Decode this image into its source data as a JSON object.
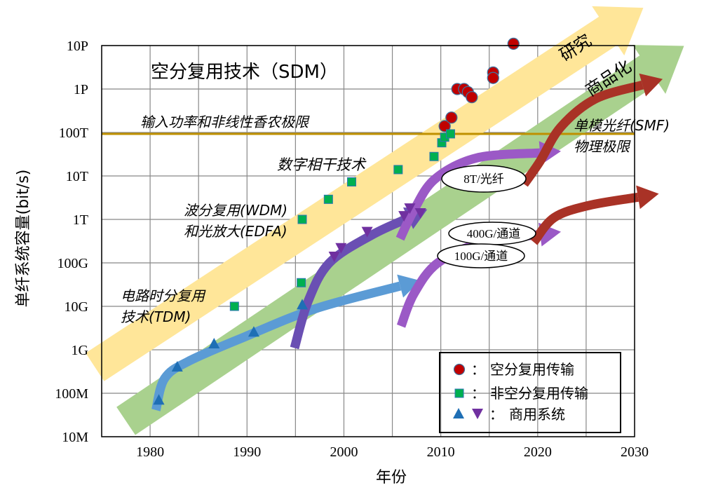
{
  "chart_data": {
    "type": "scatter",
    "title": "空分复用技术（SDM）",
    "xlabel": "年份",
    "ylabel": "单纤系统容量(bit/s)",
    "xlim": [
      1975,
      2030
    ],
    "ylim": [
      10000000.0,
      1e+16
    ],
    "yscale": "log",
    "grid": true,
    "x_ticks": [
      1980,
      1990,
      2000,
      2010,
      2020,
      2030
    ],
    "x_tick_labels": [
      "1980",
      "1990",
      "2000",
      "2010",
      "2020",
      "2030"
    ],
    "y_ticks": [
      10000000.0,
      100000000.0,
      1000000000.0,
      10000000000.0,
      100000000000.0,
      1000000000000.0,
      10000000000000.0,
      100000000000000.0,
      1000000000000000.0,
      1e+16
    ],
    "y_tick_labels": [
      "10M",
      "100M",
      "1G",
      "10G",
      "100G",
      "1T",
      "10T",
      "100T",
      "1P",
      "10P"
    ],
    "legend_position": "bottom-right",
    "legend": [
      {
        "marker": "circle",
        "label": "空分复用传输"
      },
      {
        "marker": "square",
        "label": "非空分复用传输"
      },
      {
        "marker": "triangles",
        "label": "商用系统"
      }
    ],
    "legend_separator": "：",
    "series": [
      {
        "name": "空分复用传输",
        "marker": "circle",
        "color": "#C00000",
        "x": [
          2010.4,
          2011.1,
          2011.7,
          2012.4,
          2012.8,
          2013.2,
          2015.4,
          2015.4,
          2017.5
        ],
        "y": [
          140000000000000.0,
          220000000000000.0,
          1000000000000000.0,
          1000000000000000.0,
          850000000000000.0,
          650000000000000.0,
          2400000000000000.0,
          1800000000000000.0,
          1.1e+16
        ]
      },
      {
        "name": "非空分复用传输",
        "marker": "square",
        "color": "#00B050",
        "x": [
          1988.7,
          1995.6,
          1995.7,
          1998.4,
          2000.8,
          2005.6,
          2009.3,
          2010.1,
          2010.4,
          2011.0
        ],
        "y": [
          10000000000.0,
          35000000000.0,
          1000000000000.0,
          2900000000000.0,
          7300000000000.0,
          14000000000000.0,
          28000000000000.0,
          58000000000000.0,
          78000000000000.0,
          93000000000000.0
        ]
      },
      {
        "name": "商用系统",
        "marker": "triangle-up",
        "color": "#1F6FB5",
        "x": [
          1980.9,
          1982.8,
          1986.6,
          1990.7,
          1995.7
        ],
        "y": [
          71000000.0,
          410000000.0,
          1400000000.0,
          2600000000.0,
          11000000000.0
        ]
      },
      {
        "name": "商用系统",
        "marker": "triangle-down",
        "color": "#7030A0",
        "x": [
          1999.0,
          1999.7,
          2002.4,
          2006.2,
          2006.8,
          2007.9
        ],
        "y": [
          140000000000.0,
          220000000000.0,
          520000000000.0,
          1200000000000.0,
          1800000000000.0,
          1400000000000.0
        ]
      }
    ],
    "reference_lines": [
      {
        "label": "输入功率和非线性香农极限",
        "y": 93000000000000.0,
        "color": "#BF9000"
      }
    ],
    "bands": [
      {
        "label": "研究",
        "color": "#FFE699",
        "from": [
          1974.3,
          400000000.0
        ],
        "to": [
          2030.9,
          7.4e+16
        ]
      },
      {
        "label": "商品化",
        "color": "#A9D18E",
        "from": [
          1977.5,
          23000000.0
        ],
        "to": [
          2035.1,
          9800000000000000.0
        ]
      }
    ],
    "trend_arrows": [
      {
        "label": "电路时分复用技术(TDM)",
        "color": "#5B9BD5",
        "points": [
          [
            1980.6,
            41000000.0
          ],
          [
            1981.5,
            220000000.0
          ],
          [
            1984.0,
            550000000.0
          ],
          [
            1989.8,
            2000000000.0
          ],
          [
            1997.1,
            8900000000.0
          ],
          [
            2007.9,
            39000000000.0
          ]
        ]
      },
      {
        "label": "波分复用(WDM)和光放大(EDFA)",
        "color": "#6A4FB3",
        "points": [
          [
            1994.9,
            1100000000.0
          ],
          [
            1996.3,
            13000000000.0
          ],
          [
            1998.5,
            100000000000.0
          ],
          [
            2002.9,
            440000000000.0
          ],
          [
            2008.6,
            1700000000000.0
          ]
        ]
      },
      {
        "label": "8T/光纤",
        "color": "#9B59C6",
        "points": [
          [
            2005.8,
            360000000000.0
          ],
          [
            2007.2,
            1600000000000.0
          ],
          [
            2009.4,
            8500000000000.0
          ],
          [
            2013.7,
            26000000000000.0
          ],
          [
            2022.4,
            37000000000000.0
          ]
        ]
      },
      {
        "label": "100G/通道",
        "color": "#9B59C6",
        "points": [
          [
            2005.9,
            3500000000.0
          ],
          [
            2007.2,
            19000000000.0
          ],
          [
            2009.7,
            100000000000.0
          ],
          [
            2014.4,
            300000000000.0
          ],
          [
            2022.4,
            520000000000.0
          ]
        ]
      },
      {
        "label": "单模光纤(SMF)物理极限",
        "color": "#A93226",
        "points": [
          [
            2018.6,
            6500000000000.0
          ],
          [
            2020.2,
            21000000000000.0
          ],
          [
            2022.4,
            135000000000000.0
          ],
          [
            2026.0,
            600000000000000.0
          ],
          [
            2032.9,
            1700000000000000.0
          ]
        ]
      },
      {
        "label": "400G/通道",
        "color": "#A93226",
        "points": [
          [
            2019.6,
            300000000000.0
          ],
          [
            2021.7,
            1100000000000.0
          ],
          [
            2025.3,
            2100000000000.0
          ],
          [
            2032.5,
            3900000000000.0
          ]
        ]
      }
    ],
    "annotations": {
      "sdm": "空分复用技术（SDM）",
      "shannon": "输入功率和非线性香农极限",
      "coherent": "数字相干技术",
      "wdm_line1": "波分复用(WDM)",
      "wdm_line2": "和光放大(EDFA)",
      "tdm_line1": "电路时分复用",
      "tdm_line2": "技术(TDM)",
      "smf_line1": "单模光纤(SMF)",
      "smf_line2": "物理极限",
      "research": "研究",
      "commercial": "商品化",
      "oval_8t": "8T/光纤",
      "oval_400g": "400G/通道",
      "oval_100g": "100G/通道"
    }
  }
}
